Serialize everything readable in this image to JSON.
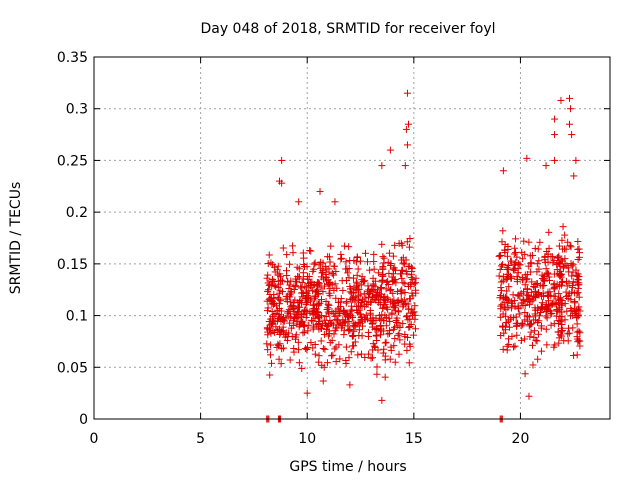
{
  "chart_data": {
    "type": "scatter",
    "title": "Day 048 of 2018, SRMTID for receiver foyl",
    "xlabel": "GPS time / hours",
    "ylabel": "SRMTID / TECUs",
    "xlim": [
      0,
      24.2
    ],
    "ylim": [
      0,
      0.35
    ],
    "xticks": [
      "0",
      "5",
      "10",
      "15",
      "20"
    ],
    "yticks": [
      "0",
      "0.05",
      "0.1",
      "0.15",
      "0.2",
      "0.25",
      "0.3",
      "0.35"
    ],
    "grid": true,
    "marker": "plus",
    "color": "#e00000",
    "zero_points_x": [
      8.1,
      8.15,
      8.2,
      8.65,
      8.7,
      8.75,
      19.05,
      19.1,
      19.15
    ],
    "clusters": [
      {
        "x": [
          8.1,
          15.1
        ],
        "y_median": 0.11,
        "y_min": 0.02,
        "y_max": 0.32
      },
      {
        "x": [
          19.0,
          22.8
        ],
        "y_median": 0.12,
        "y_min": 0.02,
        "y_max": 0.31
      }
    ],
    "highlights": [
      [
        14.7,
        0.315
      ],
      [
        14.75,
        0.285
      ],
      [
        14.65,
        0.28
      ],
      [
        14.7,
        0.265
      ],
      [
        14.6,
        0.245
      ],
      [
        13.9,
        0.26
      ],
      [
        13.5,
        0.245
      ],
      [
        8.8,
        0.25
      ],
      [
        8.7,
        0.23
      ],
      [
        8.8,
        0.228
      ],
      [
        22.3,
        0.31
      ],
      [
        21.9,
        0.308
      ],
      [
        22.35,
        0.3
      ],
      [
        21.6,
        0.29
      ],
      [
        22.3,
        0.285
      ],
      [
        21.6,
        0.275
      ],
      [
        22.4,
        0.275
      ],
      [
        19.2,
        0.24
      ],
      [
        21.6,
        0.25
      ],
      [
        21.2,
        0.245
      ],
      [
        20.3,
        0.252
      ],
      [
        22.6,
        0.25
      ],
      [
        22.5,
        0.235
      ],
      [
        10.6,
        0.22
      ],
      [
        11.3,
        0.21
      ],
      [
        9.6,
        0.21
      ],
      [
        13.5,
        0.018
      ],
      [
        12.0,
        0.033
      ],
      [
        10.0,
        0.025
      ],
      [
        20.4,
        0.022
      ]
    ]
  }
}
